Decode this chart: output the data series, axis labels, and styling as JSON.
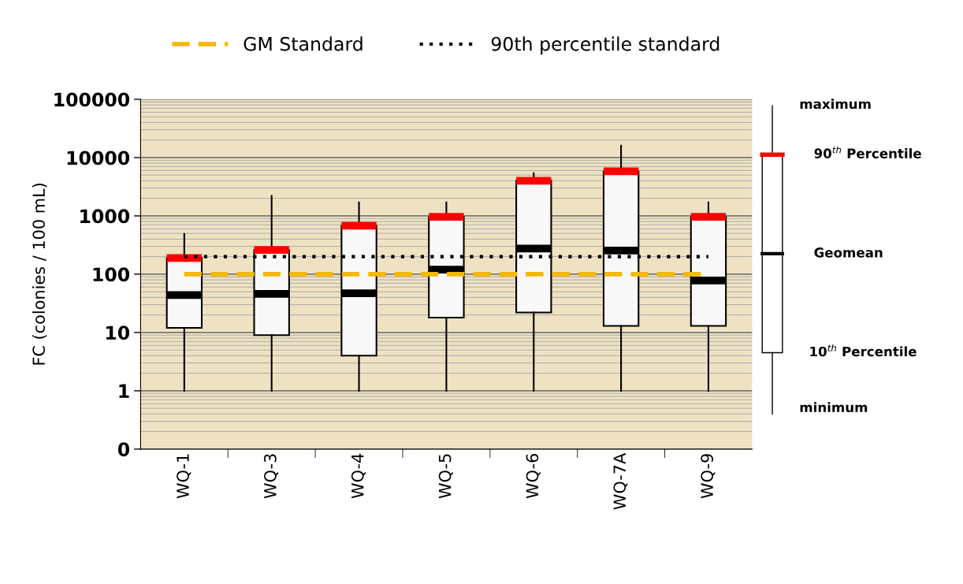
{
  "chart_data": {
    "type": "box",
    "ylabel": "FC (colonies / 100 mL)",
    "categories": [
      "WQ-1",
      "WQ-3",
      "WQ-4",
      "WQ-5",
      "WQ-6",
      "WQ-7A",
      "WQ-9"
    ],
    "boxes": [
      {
        "low": 1,
        "q1": 12,
        "median": 44,
        "q3": 190,
        "high": 490
      },
      {
        "low": 1,
        "q1": 9,
        "median": 46,
        "q3": 260,
        "high": 2200
      },
      {
        "low": 1,
        "q1": 4,
        "median": 47,
        "q3": 680,
        "high": 1700
      },
      {
        "low": 1,
        "q1": 18,
        "median": 120,
        "q3": 960,
        "high": 1700
      },
      {
        "low": 1,
        "q1": 22,
        "median": 275,
        "q3": 4000,
        "high": 5400
      },
      {
        "low": 1,
        "q1": 13,
        "median": 255,
        "q3": 5800,
        "high": 16000
      },
      {
        "low": 1,
        "q1": 13,
        "median": 78,
        "q3": 960,
        "high": 1700
      }
    ],
    "log": "y",
    "ylim": [
      0.1,
      100000
    ],
    "yticks": [
      {
        "value": 0.1,
        "label": "0"
      },
      1,
      10,
      100,
      1000,
      10000,
      100000
    ],
    "grid": "y",
    "legend": "top",
    "ref_lines": [
      {
        "axis": "y",
        "value": 100,
        "label": "GM Standard",
        "color": "#f5b800",
        "line_style": "dashed"
      },
      {
        "axis": "y",
        "value": 200,
        "label": "90th percentile standard",
        "color": "#000000",
        "line_style": "dotted"
      }
    ],
    "annotations": [
      "maximum",
      "90$^{th}$ Percentile",
      "Geomean",
      "10$^{th}$ Percentile",
      "minimum"
    ]
  }
}
